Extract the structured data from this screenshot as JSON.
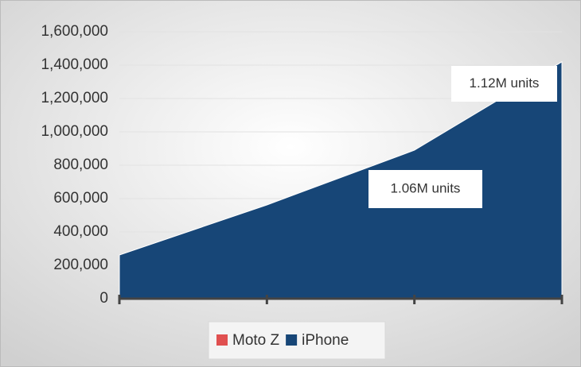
{
  "chart_data": {
    "type": "area",
    "categories": [
      null,
      null,
      null,
      null
    ],
    "series": [
      {
        "name": "Moto Z",
        "color": "#e05050",
        "values": [
          null,
          null,
          null,
          null
        ]
      },
      {
        "name": "iPhone",
        "color": "#174677",
        "values": [
          262000,
          562000,
          890000,
          1420000
        ]
      }
    ],
    "ylim": [
      0,
      1600000
    ],
    "yticks": [
      0,
      {
        "value": 200000,
        "label": "200,000"
      },
      {
        "value": 400000,
        "label": "400,000"
      },
      {
        "value": 600000,
        "label": "600,000"
      },
      {
        "value": 800000,
        "label": "800,000"
      },
      {
        "value": 1000000,
        "label": "1,000,000"
      },
      {
        "value": 1200000,
        "label": "1,200,000"
      },
      {
        "value": 1400000,
        "label": "1,400,000"
      },
      {
        "value": 1600000,
        "label": "1,600,000"
      }
    ],
    "grid": true,
    "legend": "bottom",
    "annotations": [
      {
        "text": "1.06M units"
      },
      {
        "text": "1.12M units"
      }
    ]
  }
}
